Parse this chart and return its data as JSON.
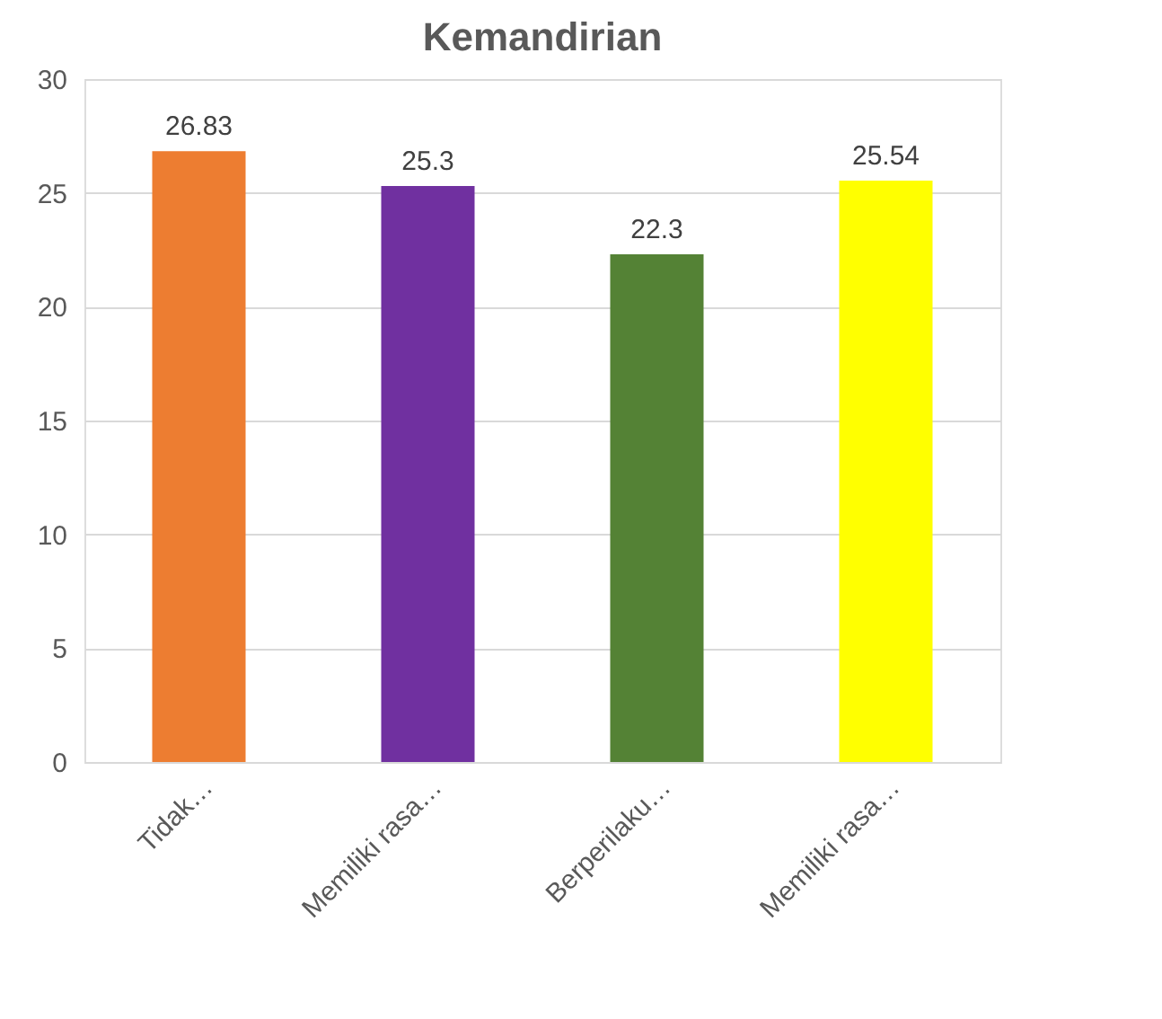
{
  "chart_data": {
    "type": "bar",
    "title": "Kemandirian",
    "categories": [
      "Tidak…",
      "Memiliki rasa…",
      "Berperilaku…",
      "Memiliki rasa…"
    ],
    "values": [
      26.83,
      25.3,
      22.3,
      25.54
    ],
    "colors": [
      "#ed7d31",
      "#7030a0",
      "#548235",
      "#ffff00"
    ],
    "ylim": [
      0,
      30
    ],
    "yticks": [
      0,
      5,
      10,
      15,
      20,
      25,
      30
    ],
    "grid": "y",
    "data_labels": true
  }
}
